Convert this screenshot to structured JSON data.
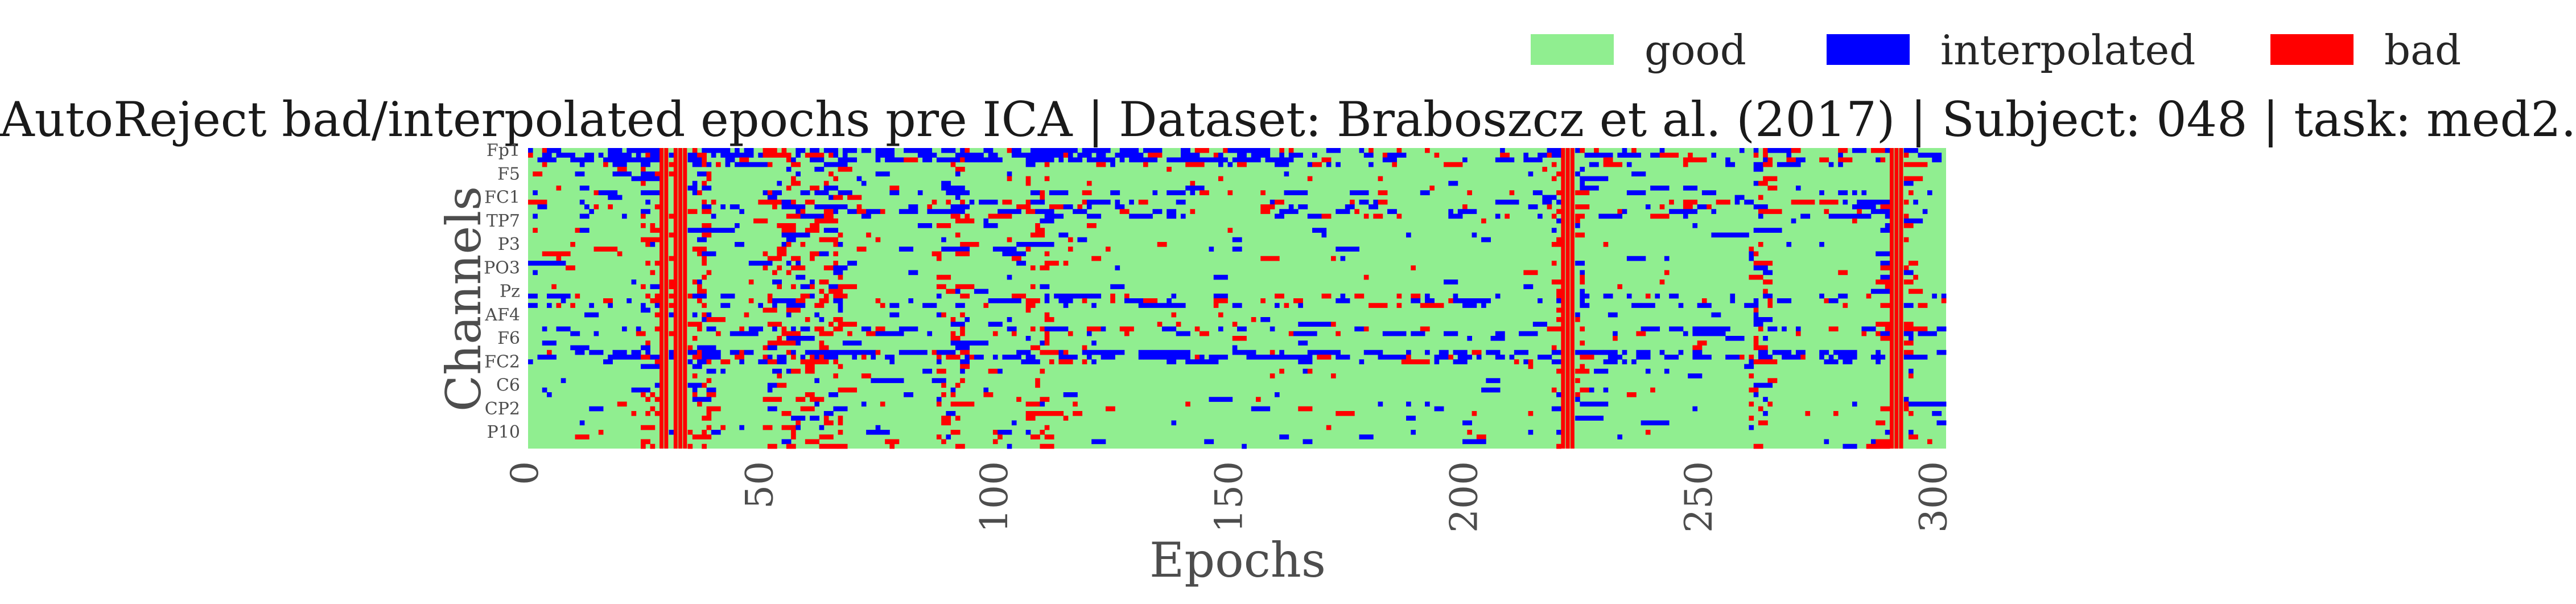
{
  "chart_data": {
    "type": "heatmap",
    "title": "AutoReject bad/interpolated epochs pre ICA | Dataset: Braboszcz et al. (2017) | Subject: 048 | task: med2.",
    "xlabel": "Epochs",
    "ylabel": "Channels",
    "xlim": [
      0,
      302
    ],
    "x_ticks": [
      "0",
      "50",
      "100",
      "150",
      "200",
      "250",
      "300"
    ],
    "y_ticks": [
      "Fp1",
      "F5",
      "FC1",
      "TP7",
      "P3",
      "PO3",
      "Pz",
      "AF4",
      "F6",
      "FC2",
      "C6",
      "CP2",
      "P10"
    ],
    "n_channels": 64,
    "n_epochs": 302,
    "grid": false,
    "legend_position": "top-right",
    "legend": [
      {
        "label": "good",
        "color": "#90EE90"
      },
      {
        "label": "interpolated",
        "color": "#0000FF"
      },
      {
        "label": "bad",
        "color": "#FF0000"
      }
    ],
    "bad_epochs": [
      28,
      29,
      31,
      32,
      33,
      220,
      221,
      222,
      290,
      291,
      292
    ],
    "dense_epoch_ranges": [
      [
        24,
        38
      ],
      [
        50,
        66
      ],
      [
        87,
        92
      ],
      [
        106,
        110
      ],
      [
        218,
        224
      ],
      [
        260,
        264
      ],
      [
        287,
        294
      ]
    ],
    "dense_channel_rows": [
      0,
      1,
      2,
      3,
      9,
      11,
      12,
      13,
      14,
      31,
      32,
      33,
      38,
      39,
      43,
      44,
      45
    ],
    "random_seed": 7
  }
}
